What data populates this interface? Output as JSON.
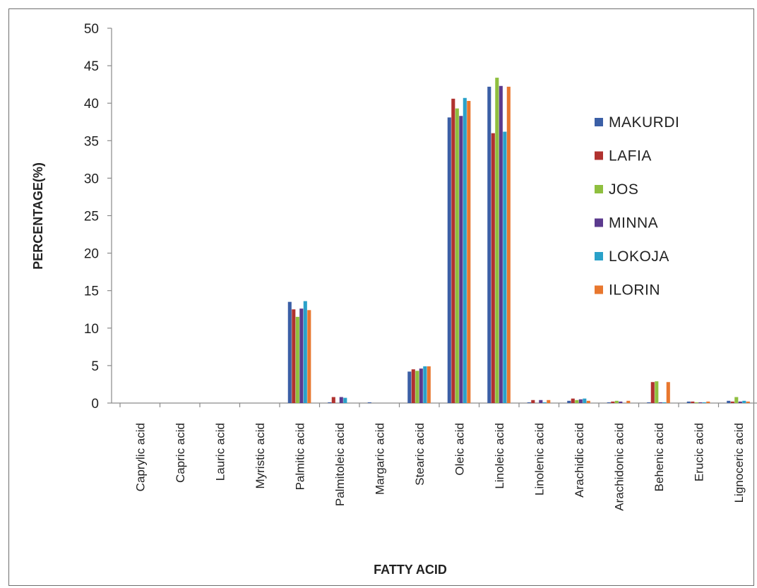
{
  "chart_data": {
    "type": "bar",
    "title": "",
    "xlabel": "FATTY ACID",
    "ylabel": "PERCENTAGE(%)",
    "ylim": [
      0,
      50
    ],
    "yticks": [
      0,
      5,
      10,
      15,
      20,
      25,
      30,
      35,
      40,
      45,
      50
    ],
    "grid": false,
    "legend_position": "right",
    "categories": [
      "Caprylic acid",
      "Capric acid",
      "Lauric acid",
      "Myristic acid",
      "Palmitic acid",
      "Palmitoleic acid",
      "Margaric acid",
      "Stearic acid",
      "Oleic acid",
      "Linoleic acid",
      "Linolenic acid",
      "Arachidic acid",
      "Arachidonic acid",
      "Behenic acid",
      "Erucic acid",
      "Lignoceric acid"
    ],
    "series": [
      {
        "name": "MAKURDI",
        "color": "#3b5fa6",
        "values": [
          0,
          0,
          0,
          0,
          13.5,
          0.1,
          0.1,
          4.2,
          38.1,
          42.2,
          0.1,
          0.3,
          0.1,
          0.1,
          0.2,
          0.3
        ]
      },
      {
        "name": "LAFIA",
        "color": "#b0322f",
        "values": [
          0,
          0,
          0,
          0,
          12.5,
          0.8,
          0.0,
          4.5,
          40.6,
          36.0,
          0.4,
          0.6,
          0.2,
          2.8,
          0.2,
          0.2
        ]
      },
      {
        "name": "JOS",
        "color": "#8fbf3f",
        "values": [
          0,
          0,
          0,
          0,
          11.5,
          0.0,
          0.0,
          4.3,
          39.3,
          43.4,
          0.0,
          0.4,
          0.3,
          2.9,
          0.1,
          0.8
        ]
      },
      {
        "name": "MINNA",
        "color": "#5b3a8e",
        "values": [
          0,
          0,
          0,
          0,
          12.6,
          0.8,
          0.0,
          4.6,
          38.3,
          42.3,
          0.4,
          0.5,
          0.2,
          0.1,
          0.1,
          0.2
        ]
      },
      {
        "name": "LOKOJA",
        "color": "#2aa1c9",
        "values": [
          0,
          0,
          0,
          0,
          13.6,
          0.7,
          0.0,
          4.9,
          40.7,
          36.2,
          0.1,
          0.6,
          0.0,
          0.1,
          0.1,
          0.3
        ]
      },
      {
        "name": "ILORIN",
        "color": "#e8772e",
        "values": [
          0,
          0,
          0,
          0,
          12.4,
          0.0,
          0.0,
          4.9,
          40.3,
          42.2,
          0.4,
          0.3,
          0.3,
          2.8,
          0.2,
          0.2
        ]
      }
    ]
  }
}
